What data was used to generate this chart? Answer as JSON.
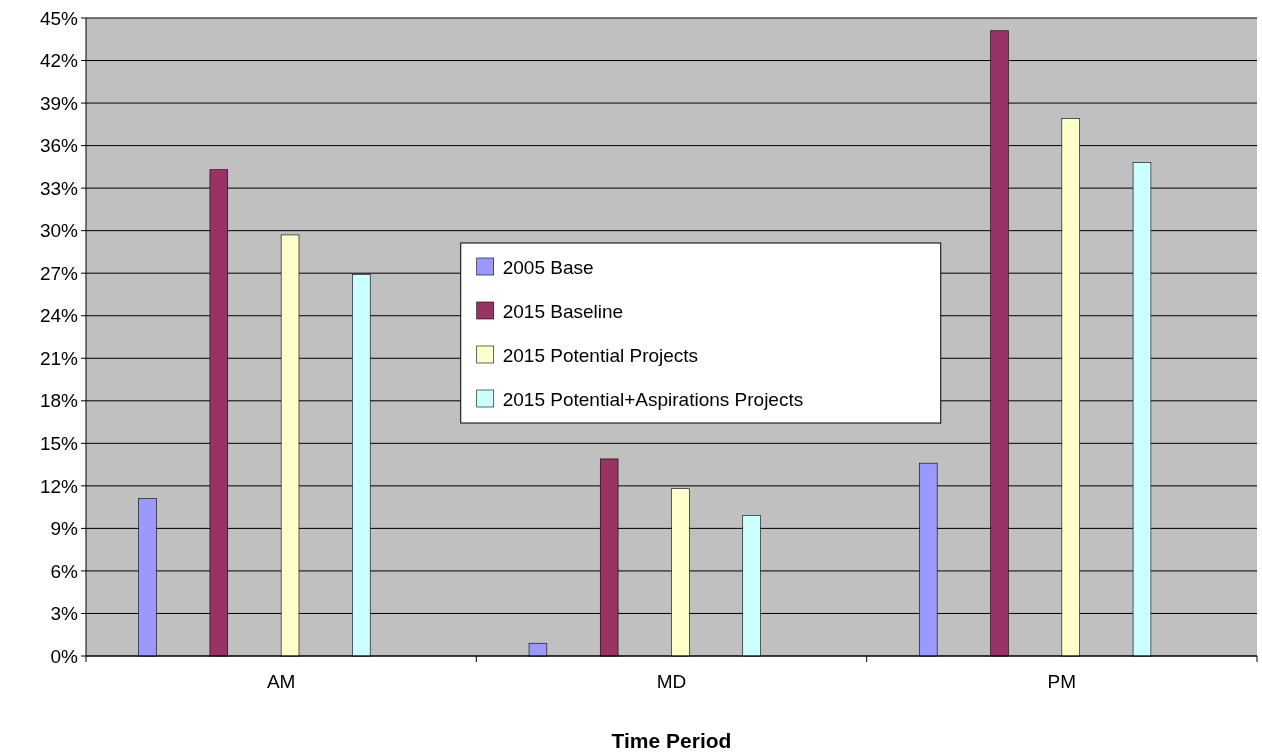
{
  "chart_data": {
    "type": "bar",
    "xlabel": "Time Period",
    "categories": [
      "AM",
      "MD",
      "PM"
    ],
    "series": [
      {
        "name": "2005 Base",
        "color": "#9999ff",
        "values": [
          11.1,
          0.9,
          13.6
        ]
      },
      {
        "name": "2015 Baseline",
        "color": "#993366",
        "values": [
          34.3,
          13.9,
          44.1
        ]
      },
      {
        "name": "2015 Potential Projects",
        "color": "#ffffcc",
        "values": [
          29.7,
          11.8,
          37.9
        ]
      },
      {
        "name": "2015 Potential+Aspirations Projects",
        "color": "#ccffff",
        "values": [
          26.9,
          9.9,
          34.8
        ]
      }
    ],
    "ylim": [
      0,
      45
    ],
    "yticks": [
      {
        "value": 0,
        "label": "0%"
      },
      {
        "value": 3,
        "label": "3%"
      },
      {
        "value": 6,
        "label": "6%"
      },
      {
        "value": 9,
        "label": "9%"
      },
      {
        "value": 12,
        "label": "12%"
      },
      {
        "value": 15,
        "label": "15%"
      },
      {
        "value": 18,
        "label": "18%"
      },
      {
        "value": 21,
        "label": "21%"
      },
      {
        "value": 24,
        "label": "24%"
      },
      {
        "value": 27,
        "label": "27%"
      },
      {
        "value": 30,
        "label": "30%"
      },
      {
        "value": 33,
        "label": "33%"
      },
      {
        "value": 36,
        "label": "36%"
      },
      {
        "value": 39,
        "label": "39%"
      },
      {
        "value": 42,
        "label": "42%"
      },
      {
        "value": 45,
        "label": "45%"
      }
    ],
    "grid": "y",
    "legend": "top"
  }
}
